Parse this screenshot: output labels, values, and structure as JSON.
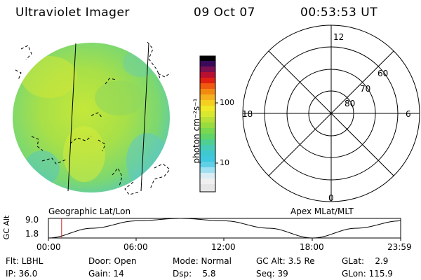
{
  "header": {
    "title": "Ultraviolet Imager",
    "date": "09 Oct 07",
    "time": "00:53:53 UT"
  },
  "colorbar": {
    "label": "photon cm⁻²s⁻¹",
    "ticks": [
      "100",
      "10"
    ]
  },
  "panels": {
    "left_caption": "Geographic Lat/Lon",
    "right_caption": "Apex MLat/MLT"
  },
  "polar": {
    "mlt_labels": {
      "top": "12",
      "left": "18",
      "right": "6",
      "bottom": "0"
    },
    "lat_labels": [
      "60",
      "70",
      "80"
    ]
  },
  "altitude_plot": {
    "ylabel": "GC Alt",
    "yticks": [
      "9.0",
      "1.8"
    ],
    "xticks": [
      "00:00",
      "06:00",
      "12:00",
      "18:00",
      "23:59"
    ],
    "marker_time_hours": 0.9,
    "chart_data": {
      "type": "line",
      "x": [
        0,
        3,
        6,
        9,
        12,
        15,
        18,
        21,
        24
      ],
      "y": [
        1.8,
        5.4,
        8.1,
        9.0,
        8.1,
        5.4,
        1.8,
        5.4,
        8.1
      ],
      "xlabel": "",
      "ylabel": "GC Alt",
      "xlim": [
        0,
        24
      ],
      "ylim": [
        1.8,
        9.0
      ]
    }
  },
  "info": {
    "flt": "Flt: LBHL",
    "ip": "IP: 36.0",
    "door": "Door: Open",
    "gain": "Gain: 14",
    "mode": "Mode: Normal",
    "dsp": "Dsp:    5.8",
    "gcalt": "GC Alt: 3.5 Re",
    "seq": "Seq: 39",
    "glat": "GLat:    2.9",
    "glon": "GLon: 115.9"
  },
  "colors": {
    "image_base": "#a8e040",
    "polar_lines": "#000000",
    "marker": "#cc2222"
  }
}
